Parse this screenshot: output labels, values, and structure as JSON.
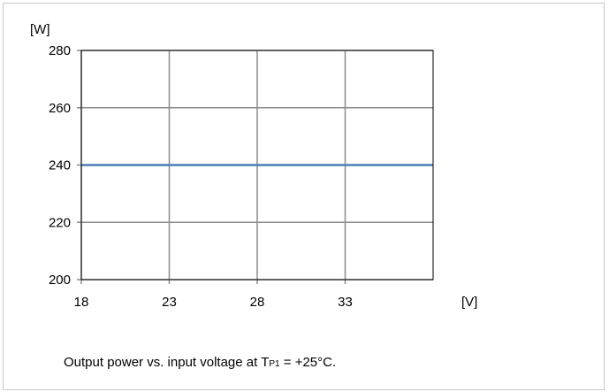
{
  "chart_data": {
    "type": "line",
    "ylabel": "[W]",
    "xlabel": "[V]",
    "xlim": [
      18,
      38
    ],
    "ylim": [
      200,
      280
    ],
    "xticks": [
      18,
      23,
      28,
      33
    ],
    "yticks": [
      200,
      220,
      240,
      260,
      280
    ],
    "grid": true,
    "series": [
      {
        "x": [
          18,
          38
        ],
        "y": [
          240,
          240
        ],
        "color": "#4a7ebb"
      }
    ]
  },
  "caption": {
    "before": "Output power vs. input voltage at T",
    "subscript": "P1",
    "after": " = +25°C."
  },
  "colors": {
    "grid": "#8c8c8c",
    "line": "#4a7ebb",
    "frame": "#c8c8c8"
  }
}
